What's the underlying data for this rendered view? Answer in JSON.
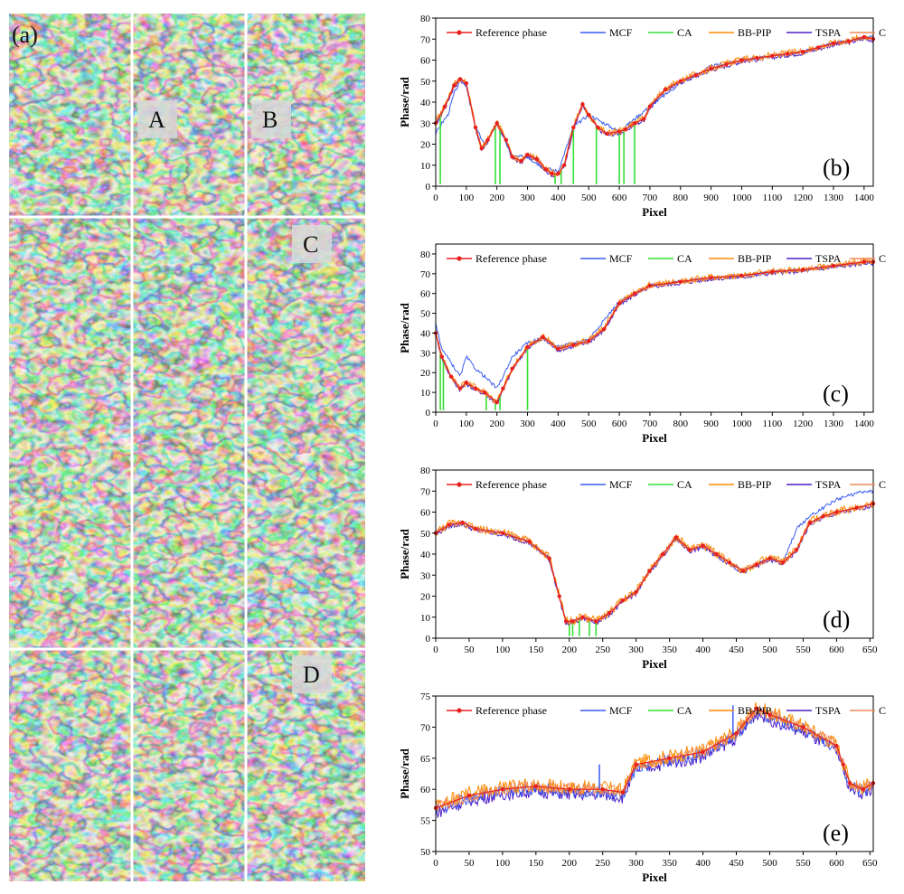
{
  "figure": {
    "panel_label": "(a)",
    "region_labels": [
      "A",
      "B",
      "C",
      "D"
    ]
  },
  "colors": {
    "reference": "#e8201e",
    "mcf": "#3a5cf0",
    "ca": "#33e033",
    "bbpip": "#ff8a00",
    "tspa": "#4b1ec8",
    "cppip": "#f08a55"
  },
  "chart_data": [
    {
      "id": "b",
      "type": "line",
      "panel_label": "(b)",
      "xlabel": "Pixel",
      "ylabel": "Phase/rad",
      "xlim": [
        0,
        1430
      ],
      "ylim": [
        0,
        80
      ],
      "xticks": [
        0,
        100,
        200,
        300,
        400,
        500,
        600,
        700,
        800,
        900,
        1000,
        1100,
        1200,
        1300,
        1400
      ],
      "yticks": [
        0,
        10,
        20,
        30,
        40,
        50,
        60,
        70,
        80
      ],
      "legend": [
        "Reference phase",
        "MCF",
        "CA",
        "BB-PIP",
        "TSPA",
        "CP-PIP"
      ],
      "reference": {
        "x": [
          0,
          30,
          60,
          80,
          100,
          130,
          150,
          170,
          200,
          230,
          250,
          280,
          300,
          330,
          360,
          380,
          400,
          420,
          450,
          480,
          500,
          530,
          560,
          600,
          620,
          650,
          680,
          700,
          750,
          800,
          850,
          900,
          950,
          1000,
          1050,
          1100,
          1150,
          1200,
          1250,
          1300,
          1350,
          1400,
          1430
        ],
        "y": [
          30,
          38,
          48,
          51,
          49,
          28,
          18,
          22,
          30,
          22,
          14,
          12,
          15,
          13,
          8,
          6,
          6,
          10,
          28,
          39,
          34,
          28,
          25,
          26,
          27,
          30,
          32,
          38,
          46,
          50,
          53,
          56,
          58,
          60,
          61,
          62,
          63,
          64,
          66,
          68,
          69,
          71,
          70
        ]
      },
      "mcf": {
        "x": [
          0,
          20,
          40,
          60,
          80,
          100,
          130,
          160,
          200,
          250,
          300,
          350,
          400,
          450,
          500,
          600,
          700,
          800,
          900,
          1000,
          1100,
          1200,
          1300,
          1430
        ],
        "y": [
          25,
          30,
          34,
          44,
          50,
          48,
          28,
          20,
          30,
          14,
          14,
          9,
          7,
          28,
          34,
          26,
          38,
          49,
          57,
          60,
          62,
          64,
          68,
          71
        ]
      },
      "ca_spikes": [
        15,
        195,
        210,
        390,
        410,
        450,
        525,
        600,
        615,
        650
      ],
      "noise": {
        "bbpip": 1.6,
        "tspa": 0.9,
        "cppip": 1.2
      }
    },
    {
      "id": "c",
      "type": "line",
      "panel_label": "(c)",
      "xlabel": "Pixel",
      "ylabel": "Phase/rad",
      "xlim": [
        0,
        1430
      ],
      "ylim": [
        0,
        85
      ],
      "xticks": [
        0,
        100,
        200,
        300,
        400,
        500,
        600,
        700,
        800,
        900,
        1000,
        1100,
        1200,
        1300,
        1400
      ],
      "yticks": [
        0,
        10,
        20,
        30,
        40,
        50,
        60,
        70,
        80
      ],
      "legend": [
        "Reference phase",
        "MCF",
        "CA",
        "BB-PIP",
        "TSPA",
        "CP-PIP"
      ],
      "reference": {
        "x": [
          0,
          20,
          50,
          80,
          100,
          130,
          160,
          200,
          220,
          250,
          300,
          350,
          400,
          450,
          500,
          550,
          600,
          650,
          700,
          800,
          900,
          1000,
          1100,
          1200,
          1300,
          1400,
          1430
        ],
        "y": [
          40,
          28,
          18,
          12,
          15,
          12,
          10,
          5,
          12,
          22,
          33,
          38,
          32,
          34,
          36,
          42,
          55,
          60,
          64,
          66,
          68,
          69,
          71,
          72,
          74,
          76,
          76
        ]
      },
      "mcf": {
        "x": [
          0,
          20,
          50,
          80,
          100,
          130,
          160,
          200,
          220,
          250,
          300,
          350,
          400,
          500,
          600,
          700,
          800,
          900,
          1000,
          1100,
          1200,
          1300,
          1430
        ],
        "y": [
          45,
          32,
          25,
          18,
          28,
          22,
          18,
          12,
          18,
          28,
          35,
          38,
          33,
          37,
          56,
          64,
          66,
          68,
          69,
          71,
          72,
          74,
          76
        ]
      },
      "ca_spikes": [
        15,
        25,
        165,
        195,
        210,
        300
      ],
      "noise": {
        "bbpip": 1.6,
        "tspa": 0.9,
        "cppip": 1.2
      }
    },
    {
      "id": "d",
      "type": "line",
      "panel_label": "(d)",
      "xlabel": "Pixel",
      "ylabel": "Phase/rad",
      "xlim": [
        0,
        655
      ],
      "ylim": [
        0,
        80
      ],
      "xticks": [
        0,
        50,
        100,
        150,
        200,
        250,
        300,
        350,
        400,
        450,
        500,
        550,
        600,
        650
      ],
      "yticks": [
        0,
        10,
        20,
        30,
        40,
        50,
        60,
        70,
        80
      ],
      "legend": [
        "Reference phase",
        "MCF",
        "CA",
        "BB-PIP",
        "TSPA",
        "CP-PIP"
      ],
      "reference": {
        "x": [
          0,
          20,
          40,
          60,
          100,
          140,
          170,
          185,
          195,
          205,
          220,
          240,
          260,
          280,
          300,
          320,
          340,
          360,
          380,
          400,
          420,
          440,
          460,
          480,
          500,
          520,
          540,
          560,
          580,
          600,
          630,
          655
        ],
        "y": [
          50,
          54,
          55,
          52,
          50,
          46,
          38,
          20,
          8,
          8,
          10,
          8,
          12,
          18,
          22,
          32,
          40,
          48,
          42,
          44,
          40,
          36,
          32,
          35,
          38,
          36,
          42,
          55,
          58,
          60,
          62,
          64
        ]
      },
      "mcf": {
        "x": [
          0,
          20,
          40,
          60,
          100,
          140,
          170,
          185,
          195,
          205,
          220,
          240,
          260,
          280,
          300,
          320,
          340,
          360,
          380,
          400,
          420,
          440,
          460,
          480,
          500,
          520,
          540,
          560,
          580,
          600,
          630,
          655
        ],
        "y": [
          50,
          54,
          55,
          52,
          50,
          46,
          38,
          20,
          8,
          8,
          10,
          8,
          12,
          18,
          22,
          32,
          40,
          48,
          42,
          44,
          40,
          36,
          32,
          35,
          38,
          36,
          52,
          58,
          62,
          66,
          69,
          70
        ]
      },
      "ca_spikes": [
        200,
        205,
        215,
        230,
        240
      ],
      "noise": {
        "bbpip": 2.0,
        "tspa": 1.0,
        "cppip": 1.4
      }
    },
    {
      "id": "e",
      "type": "line",
      "panel_label": "(e)",
      "xlabel": "Pixel",
      "ylabel": "Phase/rad",
      "xlim": [
        0,
        655
      ],
      "ylim": [
        50,
        75
      ],
      "xticks": [
        0,
        50,
        100,
        150,
        200,
        250,
        300,
        350,
        400,
        450,
        500,
        550,
        600,
        650
      ],
      "yticks": [
        50,
        55,
        60,
        65,
        70,
        75
      ],
      "legend": [
        "Reference phase",
        "MCF",
        "CA",
        "BB-PIP",
        "TSPA",
        "CP-PIP"
      ],
      "reference": {
        "x": [
          0,
          50,
          100,
          150,
          200,
          250,
          280,
          300,
          350,
          400,
          450,
          480,
          500,
          550,
          600,
          610,
          620,
          640,
          655
        ],
        "y": [
          57,
          59,
          60,
          60.5,
          60,
          60,
          59.5,
          64,
          65,
          66,
          69,
          73,
          72,
          70,
          67,
          64,
          61,
          60,
          61
        ]
      },
      "mcf_spikes": [
        [
          245,
          64
        ],
        [
          445,
          73.5
        ]
      ],
      "noise": {
        "bbpip": 1.2,
        "tspa": 1.0,
        "cppip": 1.0
      }
    }
  ]
}
